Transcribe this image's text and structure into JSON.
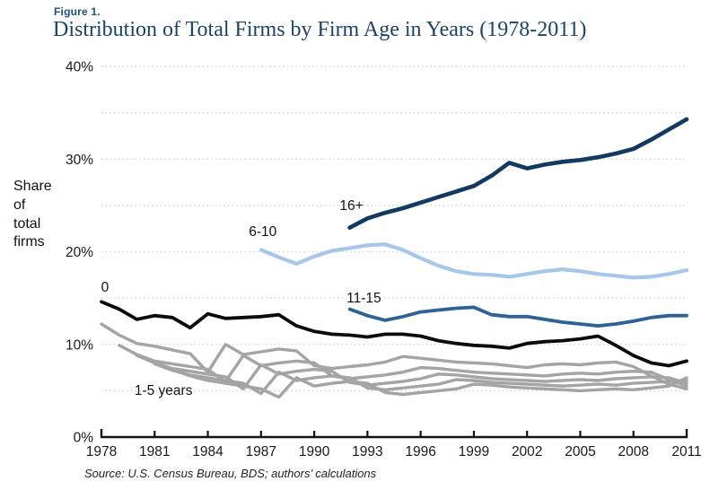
{
  "figure_label": "Figure 1.",
  "title": "Distribution of Total Firms by Firm Age in Years (1978-2011)",
  "y_axis_title_lines": [
    "Share",
    "of",
    "total",
    "firms"
  ],
  "source": "Source: U.S. Census Bureau, BDS; authors’ calculations",
  "colors": {
    "background": "#FFFFFF",
    "figure_label_navy": "#1C4F7C",
    "title_navy": "#1B4268",
    "axis_text": "#1A1A1A",
    "axis_line": "#131313",
    "gridline": "#C9C9C9",
    "series_age_0": "#0B0B0B",
    "series_age_1_5_gray": "#A4A4A4",
    "series_age_6_10": "#A6C6EA",
    "series_age_11_15": "#2E6195",
    "series_age_16_plus": "#123A60"
  },
  "chart_data": {
    "type": "line",
    "title": "Distribution of Total Firms by Firm Age in Years (1978-2011)",
    "xlabel": "",
    "ylabel": "Share of total firms",
    "xlim": [
      1978,
      2011
    ],
    "ylim": [
      0,
      40
    ],
    "x_ticks": [
      1978,
      1981,
      1984,
      1987,
      1990,
      1993,
      1996,
      1999,
      2002,
      2005,
      2008,
      2011
    ],
    "y_ticks": [
      0,
      10,
      20,
      30,
      40
    ],
    "y_tick_labels": [
      "0%",
      "10%",
      "20%",
      "30%",
      "40%"
    ],
    "grid": "horizontal dotted",
    "grid_interval": 5,
    "legend_position": "inline labels on lines",
    "units": "percent share of total firms",
    "series": [
      {
        "name": "age-1",
        "age_group": "1",
        "group": "1-5 years",
        "color": "#A4A4A4",
        "start_year": 1978,
        "values": [
          12.2,
          11.0,
          10.1,
          9.8,
          9.4,
          9.0,
          7.0,
          10.0,
          8.9,
          9.2,
          9.5,
          9.3,
          7.7,
          7.4,
          7.6,
          7.8,
          8.1,
          8.7,
          8.5,
          8.3,
          8.1,
          8.0,
          7.9,
          7.7,
          7.5,
          7.8,
          7.9,
          7.8,
          8.0,
          8.1,
          7.6,
          6.6,
          5.7,
          5.2
        ]
      },
      {
        "name": "age-2",
        "age_group": "2",
        "group": "1-5 years",
        "color": "#A4A4A4",
        "start_year": 1979,
        "values": [
          9.9,
          8.9,
          8.2,
          7.9,
          7.6,
          7.3,
          6.0,
          8.8,
          7.7,
          8.0,
          8.2,
          8.0,
          6.6,
          6.3,
          6.5,
          6.7,
          7.0,
          7.5,
          7.4,
          7.2,
          7.0,
          6.9,
          6.8,
          6.7,
          6.6,
          6.8,
          6.9,
          6.8,
          7.0,
          7.1,
          7.0,
          6.2,
          5.5
        ]
      },
      {
        "name": "age-3",
        "age_group": "3",
        "group": "1-5 years",
        "color": "#A4A4A4",
        "start_year": 1980,
        "values": [
          8.8,
          8.0,
          7.4,
          7.1,
          6.8,
          6.5,
          5.2,
          7.8,
          6.8,
          7.1,
          7.3,
          7.1,
          5.9,
          5.6,
          5.8,
          6.0,
          6.3,
          6.8,
          6.7,
          6.5,
          6.3,
          6.2,
          6.1,
          6.0,
          6.1,
          6.2,
          6.1,
          6.3,
          6.4,
          6.5,
          6.4,
          5.8
        ]
      },
      {
        "name": "age-4",
        "age_group": "4",
        "group": "1-5 years",
        "color": "#A4A4A4",
        "start_year": 1981,
        "values": [
          7.9,
          7.2,
          6.7,
          6.4,
          6.1,
          5.8,
          4.7,
          7.0,
          6.1,
          6.4,
          6.6,
          6.4,
          5.3,
          5.1,
          5.3,
          5.5,
          5.7,
          6.2,
          6.1,
          5.9,
          5.8,
          5.7,
          5.6,
          5.5,
          5.6,
          5.7,
          5.6,
          5.8,
          5.9,
          6.0,
          6.1
        ]
      },
      {
        "name": "age-5",
        "age_group": "5",
        "group": "1-5 years",
        "color": "#A4A4A4",
        "start_year": 1982,
        "values": [
          7.3,
          6.6,
          6.1,
          5.8,
          5.5,
          5.2,
          4.3,
          6.4,
          5.5,
          5.8,
          6.0,
          5.8,
          4.8,
          4.6,
          4.8,
          5.0,
          5.2,
          5.7,
          5.6,
          5.4,
          5.3,
          5.2,
          5.1,
          5.0,
          5.1,
          5.2,
          5.1,
          5.3,
          5.5,
          6.4
        ]
      },
      {
        "name": "age-6-10",
        "age_group": "6-10",
        "color": "#A6C6EA",
        "start_year": 1987,
        "values": [
          20.2,
          19.4,
          18.7,
          19.5,
          20.1,
          20.4,
          20.7,
          20.8,
          20.2,
          19.3,
          18.5,
          17.9,
          17.6,
          17.5,
          17.3,
          17.6,
          17.9,
          18.1,
          17.9,
          17.6,
          17.4,
          17.2,
          17.3,
          17.6,
          18.0
        ]
      },
      {
        "name": "age-0",
        "age_group": "0",
        "color": "#0B0B0B",
        "start_year": 1978,
        "values": [
          14.6,
          13.8,
          12.7,
          13.1,
          12.9,
          11.8,
          13.3,
          12.8,
          12.9,
          13.0,
          13.2,
          12.0,
          11.4,
          11.1,
          11.0,
          10.8,
          11.1,
          11.1,
          10.9,
          10.4,
          10.1,
          9.9,
          9.8,
          9.6,
          10.1,
          10.3,
          10.4,
          10.6,
          10.9,
          9.9,
          8.8,
          8.0,
          7.7,
          8.2
        ]
      },
      {
        "name": "age-11-15",
        "age_group": "11-15",
        "color": "#2E6195",
        "start_year": 1992,
        "values": [
          13.8,
          13.1,
          12.6,
          13.0,
          13.5,
          13.7,
          13.9,
          14.0,
          13.2,
          13.0,
          13.0,
          12.7,
          12.4,
          12.2,
          12.0,
          12.2,
          12.5,
          12.9,
          13.1,
          13.1
        ]
      },
      {
        "name": "age-16-plus",
        "age_group": "16+",
        "color": "#123A60",
        "start_year": 1992,
        "values": [
          22.6,
          23.6,
          24.2,
          24.7,
          25.3,
          25.9,
          26.5,
          27.1,
          28.2,
          29.6,
          29.0,
          29.4,
          29.7,
          29.9,
          30.2,
          30.6,
          31.1,
          32.1,
          33.2,
          34.3
        ]
      }
    ],
    "annotations": [
      {
        "text": "0",
        "series": "age-0",
        "year": 1978.2,
        "pct": 16.1
      },
      {
        "text": "1-5 years",
        "series": "age-1-5-group",
        "year": 1981.5,
        "pct": 4.9
      },
      {
        "text": "6-10",
        "series": "age-6-10",
        "year": 1987.1,
        "pct": 22.1
      },
      {
        "text": "11-15",
        "series": "age-11-15",
        "year": 1992.8,
        "pct": 14.9
      },
      {
        "text": "16+",
        "series": "age-16-plus",
        "year": 1992.1,
        "pct": 24.9
      }
    ]
  }
}
